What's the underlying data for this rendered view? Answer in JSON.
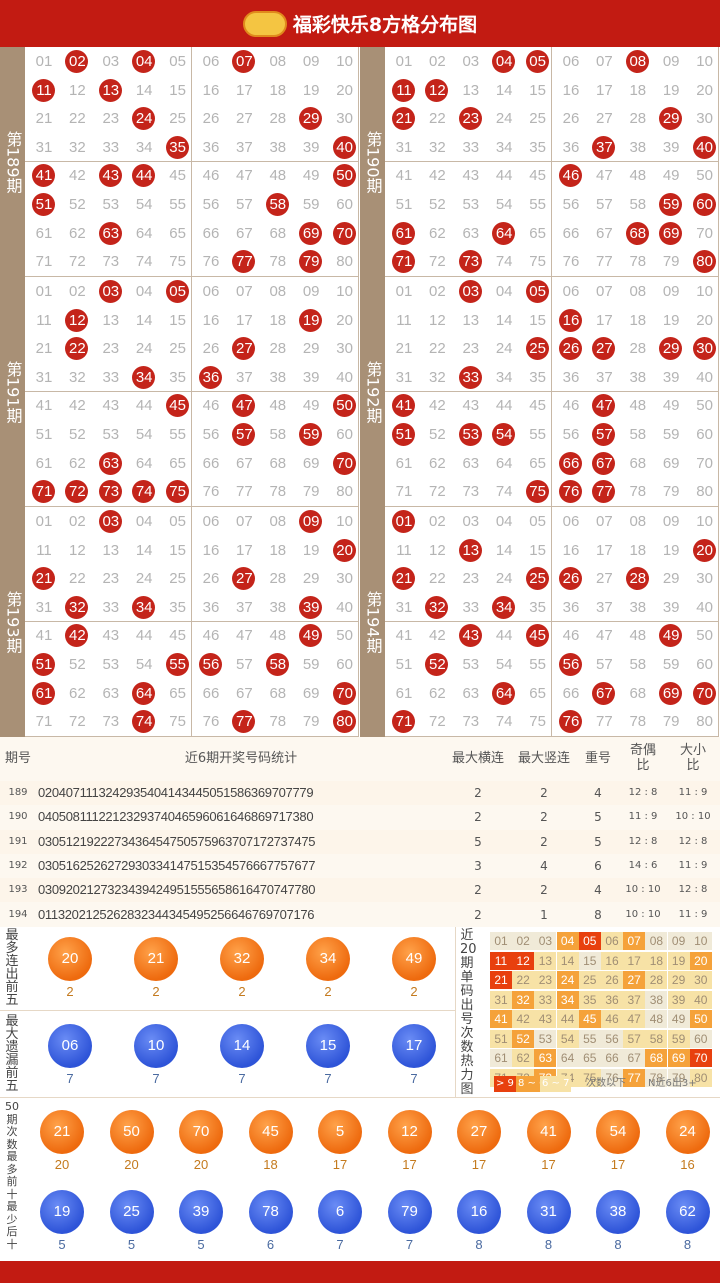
{
  "header": {
    "title": "福彩快乐8方格分布图"
  },
  "panels": [
    {
      "label": "第189期",
      "nums": [
        2,
        4,
        7,
        11,
        13,
        24,
        29,
        35,
        40,
        41,
        43,
        44,
        50,
        51,
        58,
        63,
        69,
        70,
        77,
        79
      ]
    },
    {
      "label": "第190期",
      "nums": [
        4,
        5,
        8,
        11,
        12,
        21,
        23,
        29,
        37,
        40,
        46,
        59,
        60,
        61,
        64,
        68,
        69,
        71,
        73,
        80
      ]
    },
    {
      "label": "第191期",
      "nums": [
        3,
        5,
        12,
        19,
        22,
        27,
        34,
        36,
        45,
        47,
        50,
        57,
        59,
        63,
        70,
        71,
        72,
        73,
        74,
        75
      ]
    },
    {
      "label": "第192期",
      "nums": [
        3,
        5,
        16,
        25,
        26,
        27,
        29,
        30,
        33,
        41,
        47,
        51,
        53,
        54,
        57,
        66,
        67,
        75,
        76,
        77
      ]
    },
    {
      "label": "第193期",
      "nums": [
        3,
        9,
        20,
        21,
        27,
        32,
        34,
        39,
        42,
        49,
        51,
        55,
        56,
        58,
        61,
        64,
        70,
        74,
        77,
        80
      ]
    },
    {
      "label": "第194期",
      "nums": [
        1,
        13,
        20,
        21,
        25,
        26,
        28,
        32,
        34,
        43,
        45,
        49,
        52,
        56,
        64,
        67,
        69,
        70,
        71,
        76
      ]
    }
  ],
  "stats": {
    "headers": {
      "period": "期号",
      "numbers": "近6期开奖号码统计",
      "max_h": "最大横连",
      "max_v": "最大竖连",
      "repeat": "重号",
      "odd_even": "奇偶比",
      "big_small": "大小比"
    },
    "rows": [
      {
        "period": "189",
        "numbers": "0204071113242935404143445051586369707779",
        "max_h": "2",
        "max_v": "2",
        "repeat": "4",
        "odd_even": "12 : 8",
        "big_small": "11 : 9"
      },
      {
        "period": "190",
        "numbers": "0405081112212329374046596061646869717380",
        "max_h": "2",
        "max_v": "2",
        "repeat": "5",
        "odd_even": "11 : 9",
        "big_small": "10 : 10"
      },
      {
        "period": "191",
        "numbers": "0305121922273436454750575963707172737475",
        "max_h": "5",
        "max_v": "2",
        "repeat": "5",
        "odd_even": "12 : 8",
        "big_small": "12 : 8"
      },
      {
        "period": "192",
        "numbers": "0305162526272930334147515354576667757677",
        "max_h": "3",
        "max_v": "4",
        "repeat": "6",
        "odd_even": "14 : 6",
        "big_small": "11 : 9"
      },
      {
        "period": "193",
        "numbers": "0309202127323439424951555658616470747780",
        "max_h": "2",
        "max_v": "2",
        "repeat": "4",
        "odd_even": "10 : 10",
        "big_small": "12 : 8"
      },
      {
        "period": "194",
        "numbers": "0113202125262832344345495256646769707176",
        "max_h": "2",
        "max_v": "1",
        "repeat": "8",
        "odd_even": "10 : 10",
        "big_small": "11 : 9"
      }
    ]
  },
  "hot_streak": {
    "label": "最多连出前五",
    "balls": [
      {
        "n": "20",
        "c": "2"
      },
      {
        "n": "21",
        "c": "2"
      },
      {
        "n": "32",
        "c": "2"
      },
      {
        "n": "34",
        "c": "2"
      },
      {
        "n": "49",
        "c": "2"
      }
    ]
  },
  "miss": {
    "label": "最大遗漏前五",
    "balls": [
      {
        "n": "06",
        "c": "7"
      },
      {
        "n": "10",
        "c": "7"
      },
      {
        "n": "14",
        "c": "7"
      },
      {
        "n": "15",
        "c": "7"
      },
      {
        "n": "17",
        "c": "7"
      }
    ]
  },
  "freq_label": "50期次数最多前十最少后十",
  "most": [
    {
      "n": "21",
      "c": "20"
    },
    {
      "n": "50",
      "c": "20"
    },
    {
      "n": "70",
      "c": "20"
    },
    {
      "n": "45",
      "c": "18"
    },
    {
      "n": "5",
      "c": "17"
    },
    {
      "n": "12",
      "c": "17"
    },
    {
      "n": "27",
      "c": "17"
    },
    {
      "n": "41",
      "c": "17"
    },
    {
      "n": "54",
      "c": "17"
    },
    {
      "n": "24",
      "c": "16"
    }
  ],
  "least": [
    {
      "n": "19",
      "c": "5"
    },
    {
      "n": "25",
      "c": "5"
    },
    {
      "n": "39",
      "c": "5"
    },
    {
      "n": "78",
      "c": "6"
    },
    {
      "n": "6",
      "c": "7"
    },
    {
      "n": "79",
      "c": "7"
    },
    {
      "n": "16",
      "c": "8"
    },
    {
      "n": "31",
      "c": "8"
    },
    {
      "n": "38",
      "c": "8"
    },
    {
      "n": "62",
      "c": "8"
    }
  ],
  "heat": {
    "label": "近20期单码出号次数热力图",
    "legend": [
      "> 9",
      "8 ~ 6",
      "6 ~ 7",
      "次数以下",
      "N近6出3+"
    ],
    "levels": [
      0,
      0,
      0,
      2,
      3,
      1,
      2,
      0,
      0,
      0,
      3,
      3,
      1,
      1,
      0,
      1,
      1,
      1,
      1,
      2,
      3,
      1,
      1,
      2,
      1,
      1,
      2,
      1,
      1,
      1,
      1,
      2,
      1,
      2,
      1,
      1,
      1,
      0,
      1,
      1,
      2,
      1,
      1,
      1,
      2,
      1,
      1,
      0,
      0,
      2,
      1,
      2,
      0,
      1,
      0,
      0,
      1,
      1,
      1,
      0,
      0,
      1,
      2,
      0,
      0,
      0,
      0,
      2,
      2,
      3,
      1,
      1,
      2,
      1,
      1,
      0,
      2,
      0,
      0,
      1
    ],
    "colors": {
      "c0": "#f0ead8",
      "c1": "#f7e2a6",
      "c2": "#f5a23a",
      "c3": "#e8400e"
    }
  }
}
